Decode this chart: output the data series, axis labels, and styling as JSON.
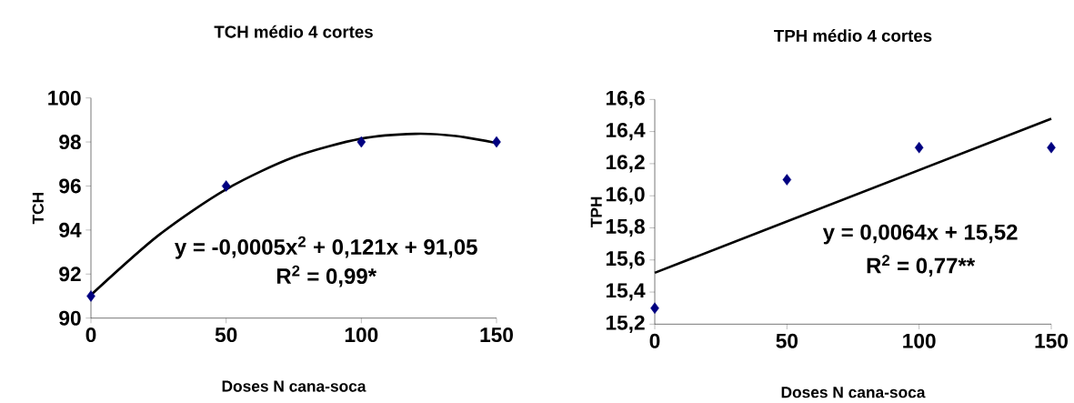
{
  "chart_data": [
    {
      "type": "scatter",
      "title": "TCH médio 4 cortes",
      "xlabel": "Doses N cana-soca",
      "ylabel": "TCH",
      "xlim": [
        0,
        150
      ],
      "xticks": [
        0,
        50,
        100,
        150
      ],
      "ylim": [
        90,
        100
      ],
      "yticks": [
        90,
        92,
        94,
        96,
        98,
        100
      ],
      "grid": false,
      "series": [
        {
          "color": "#000080",
          "marker": "diamond",
          "x": [
            0,
            50,
            100,
            150
          ],
          "values": [
            91,
            96,
            98,
            98
          ]
        },
        {
          "type": "line",
          "marker": "none",
          "color": "#000000",
          "x": [
            0,
            25,
            50,
            75,
            100,
            120,
            135,
            150
          ],
          "values": [
            91.05,
            93.76,
            95.85,
            97.31,
            98.15,
            98.37,
            98.27,
            97.95
          ]
        }
      ],
      "annotations": [
        "y = -0,0005x$^{2}$ + 0,121x + 91,05",
        "R$^{2}$ = 0,99*"
      ]
    },
    {
      "type": "scatter",
      "title": "TPH médio 4 cortes",
      "xlabel": "Doses N cana-soca",
      "ylabel": "TPH",
      "xlim": [
        0,
        150
      ],
      "xticks": [
        0,
        50,
        100,
        150
      ],
      "ylim": [
        15.2,
        16.6
      ],
      "yticks": [
        {
          "value": 15.2,
          "label": "15,2"
        },
        {
          "value": 15.4,
          "label": "15,4"
        },
        {
          "value": 15.6,
          "label": "15,6"
        },
        {
          "value": 15.8,
          "label": "15,8"
        },
        {
          "value": 16.0,
          "label": "16,0"
        },
        {
          "value": 16.2,
          "label": "16,2"
        },
        {
          "value": 16.4,
          "label": "16,4"
        },
        {
          "value": 16.6,
          "label": "16,6"
        }
      ],
      "grid": false,
      "series": [
        {
          "color": "#000080",
          "marker": "diamond",
          "x": [
            0,
            50,
            100,
            150
          ],
          "values": [
            15.3,
            16.1,
            16.3,
            16.3
          ]
        },
        {
          "type": "line",
          "marker": "none",
          "color": "#000000",
          "x": [
            0,
            150
          ],
          "values": [
            15.52,
            16.48
          ]
        }
      ],
      "annotations": [
        "y = 0,0064x + 15,52",
        "R$^{2}$ = 0,77**"
      ]
    }
  ]
}
